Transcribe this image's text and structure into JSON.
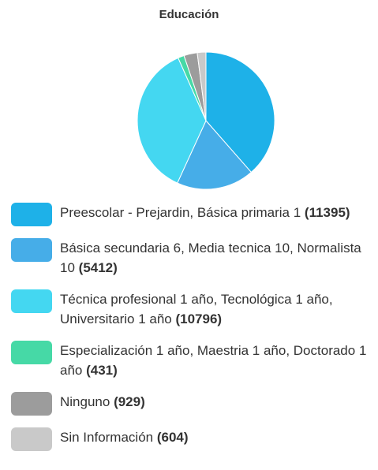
{
  "chart_data": {
    "type": "pie",
    "title": "Educación",
    "categories": [
      "Preescolar - Prejardin, Básica primaria 1",
      "Básica secundaria 6, Media tecnica 10, Normalista 10",
      "Técnica profesional 1 año, Tecnológica 1 año, Universitario 1 año",
      "Especialización 1 año, Maestria 1 año, Doctorado 1 año",
      "Ninguno",
      "Sin Información"
    ],
    "values": [
      11395,
      5412,
      10796,
      431,
      929,
      604
    ],
    "value_labels": [
      "(11395)",
      "(5412)",
      "(10796)",
      "(431)",
      "(929)",
      "(604)"
    ],
    "colors": [
      "#1eb1e8",
      "#46ade8",
      "#44d7f1",
      "#46d9a6",
      "#9c9c9c",
      "#c9c9c9"
    ]
  }
}
